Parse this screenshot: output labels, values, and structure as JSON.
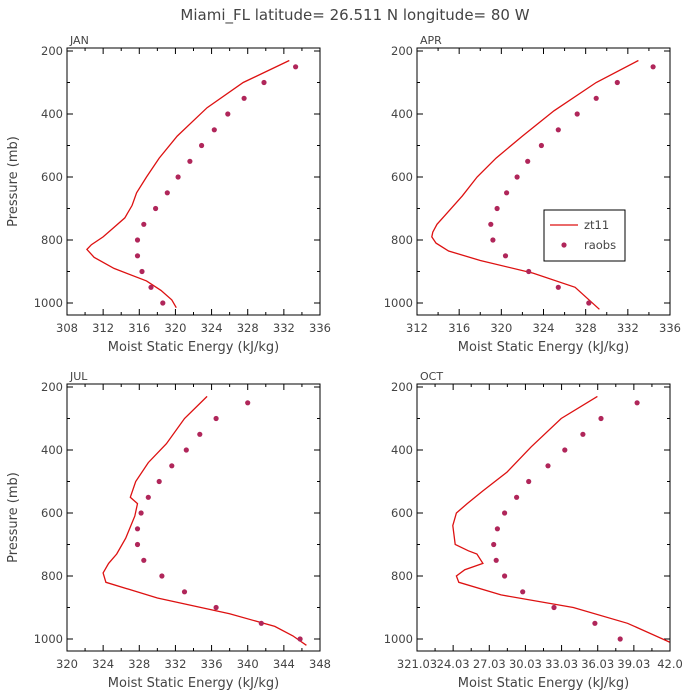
{
  "figure": {
    "title": "Miami_FL   latitude= 26.511 N longitude= 80 W",
    "xlabel": "Moist Static Energy (kJ/kg)",
    "ylabel": "Pressure (mb)",
    "legend": {
      "model_label": "zt11",
      "obs_label": "raobs"
    },
    "colors": {
      "model": "#dd1111",
      "obs": "#b0265a"
    }
  },
  "chart_data": [
    {
      "type": "line",
      "panel_label": "JAN",
      "xlim": [
        308,
        336
      ],
      "ylim": [
        1000,
        200
      ],
      "xticks": [
        308,
        312,
        316,
        320,
        324,
        328,
        332,
        336
      ],
      "xtick_labels": [
        "308",
        "312",
        "316",
        "320",
        "324",
        "328",
        "332",
        "336"
      ],
      "yticks": [
        200,
        400,
        600,
        800,
        1000
      ],
      "series": [
        {
          "name": "zt11",
          "style": "line",
          "x": [
            332.6,
            327.5,
            323.5,
            320.2,
            318.2,
            316.8,
            315.7,
            315.2,
            314.4,
            313.2,
            312.0,
            310.7,
            310.2,
            311.0,
            313.2,
            316.8,
            318.4,
            319.6,
            320.1
          ],
          "y": [
            230,
            300,
            380,
            470,
            540,
            600,
            650,
            690,
            730,
            760,
            790,
            815,
            830,
            855,
            890,
            930,
            960,
            990,
            1015
          ]
        },
        {
          "name": "raobs",
          "style": "scatter",
          "x": [
            333.3,
            329.8,
            327.6,
            325.8,
            324.3,
            322.9,
            321.6,
            320.3,
            319.1,
            317.8,
            316.5,
            315.8,
            315.8,
            316.3,
            317.3,
            318.6
          ],
          "y": [
            250,
            300,
            350,
            400,
            450,
            500,
            550,
            600,
            650,
            700,
            750,
            800,
            850,
            900,
            950,
            1000
          ]
        }
      ]
    },
    {
      "type": "line",
      "panel_label": "APR",
      "xlim": [
        312,
        336
      ],
      "ylim": [
        1000,
        200
      ],
      "xticks": [
        312,
        316,
        320,
        324,
        328,
        332,
        336
      ],
      "xtick_labels": [
        "312",
        "316",
        "320",
        "324",
        "328",
        "332",
        "336"
      ],
      "yticks": [
        200,
        400,
        600,
        800,
        1000
      ],
      "series": [
        {
          "name": "zt11",
          "style": "line",
          "x": [
            333.0,
            329.0,
            325.0,
            322.0,
            319.5,
            317.7,
            316.3,
            314.7,
            313.9,
            313.5,
            313.4,
            313.8,
            315.0,
            318.0,
            323.0,
            327.0,
            329.3
          ],
          "y": [
            230,
            300,
            390,
            470,
            540,
            600,
            660,
            720,
            750,
            775,
            790,
            810,
            835,
            865,
            905,
            950,
            1020
          ]
        },
        {
          "name": "raobs",
          "style": "scatter",
          "x": [
            334.4,
            331.0,
            329.0,
            327.2,
            325.4,
            323.8,
            322.5,
            321.5,
            320.5,
            319.6,
            319.0,
            319.2,
            320.4,
            322.6,
            325.4,
            328.3
          ],
          "y": [
            250,
            300,
            350,
            400,
            450,
            500,
            550,
            600,
            650,
            700,
            750,
            800,
            850,
            900,
            950,
            1000
          ]
        }
      ]
    },
    {
      "type": "line",
      "panel_label": "JUL",
      "xlim": [
        320,
        348
      ],
      "ylim": [
        1000,
        200
      ],
      "xticks": [
        320,
        324,
        328,
        332,
        336,
        340,
        344,
        348
      ],
      "xtick_labels": [
        "320",
        "324",
        "328",
        "332",
        "336",
        "340",
        "344",
        "348"
      ],
      "yticks": [
        200,
        400,
        600,
        800,
        1000
      ],
      "series": [
        {
          "name": "zt11",
          "style": "line",
          "x": [
            335.5,
            333.0,
            331.0,
            329.0,
            327.6,
            327.0,
            327.8,
            327.5,
            326.5,
            325.5,
            324.6,
            324.0,
            324.3,
            330.0,
            338.0,
            343.0,
            345.0,
            346.5
          ],
          "y": [
            230,
            300,
            380,
            440,
            500,
            550,
            570,
            610,
            680,
            730,
            760,
            790,
            820,
            870,
            920,
            960,
            990,
            1020
          ]
        },
        {
          "name": "raobs",
          "style": "scatter",
          "x": [
            340.0,
            336.5,
            334.7,
            333.2,
            331.6,
            330.2,
            329.0,
            328.2,
            327.8,
            327.8,
            328.5,
            330.5,
            333.0,
            336.5,
            341.5,
            345.8
          ],
          "y": [
            250,
            300,
            350,
            400,
            450,
            500,
            550,
            600,
            650,
            700,
            750,
            800,
            850,
            900,
            950,
            1000
          ]
        }
      ]
    },
    {
      "type": "line",
      "panel_label": "OCT",
      "xlim": [
        321.03,
        342.03
      ],
      "ylim": [
        1000,
        200
      ],
      "xticks": [
        321.03,
        324.03,
        327.03,
        330.03,
        333.03,
        336.03,
        339.03,
        342.03
      ],
      "xtick_labels": [
        "321.03",
        "24.03",
        "27.03",
        "30.03",
        "33.03",
        "36.03",
        "39.03",
        "42.0"
      ],
      "yticks": [
        200,
        400,
        600,
        800,
        1000
      ],
      "series": [
        {
          "name": "zt11",
          "style": "line",
          "x": [
            336.0,
            333.0,
            330.5,
            328.5,
            326.5,
            325.2,
            324.3,
            324.0,
            324.2,
            325.3,
            326.0,
            326.5,
            325.0,
            324.3,
            324.5,
            328.0,
            334.0,
            338.5,
            342.0
          ],
          "y": [
            230,
            300,
            390,
            470,
            530,
            570,
            600,
            640,
            700,
            720,
            730,
            760,
            780,
            800,
            820,
            860,
            900,
            950,
            1010
          ]
        },
        {
          "name": "raobs",
          "style": "scatter",
          "x": [
            339.3,
            336.3,
            334.8,
            333.3,
            331.9,
            330.3,
            329.3,
            328.3,
            327.7,
            327.4,
            327.6,
            328.3,
            329.8,
            332.4,
            335.8,
            337.9
          ],
          "y": [
            250,
            300,
            350,
            400,
            450,
            500,
            550,
            600,
            650,
            700,
            750,
            800,
            850,
            900,
            950,
            1000
          ]
        }
      ]
    }
  ]
}
